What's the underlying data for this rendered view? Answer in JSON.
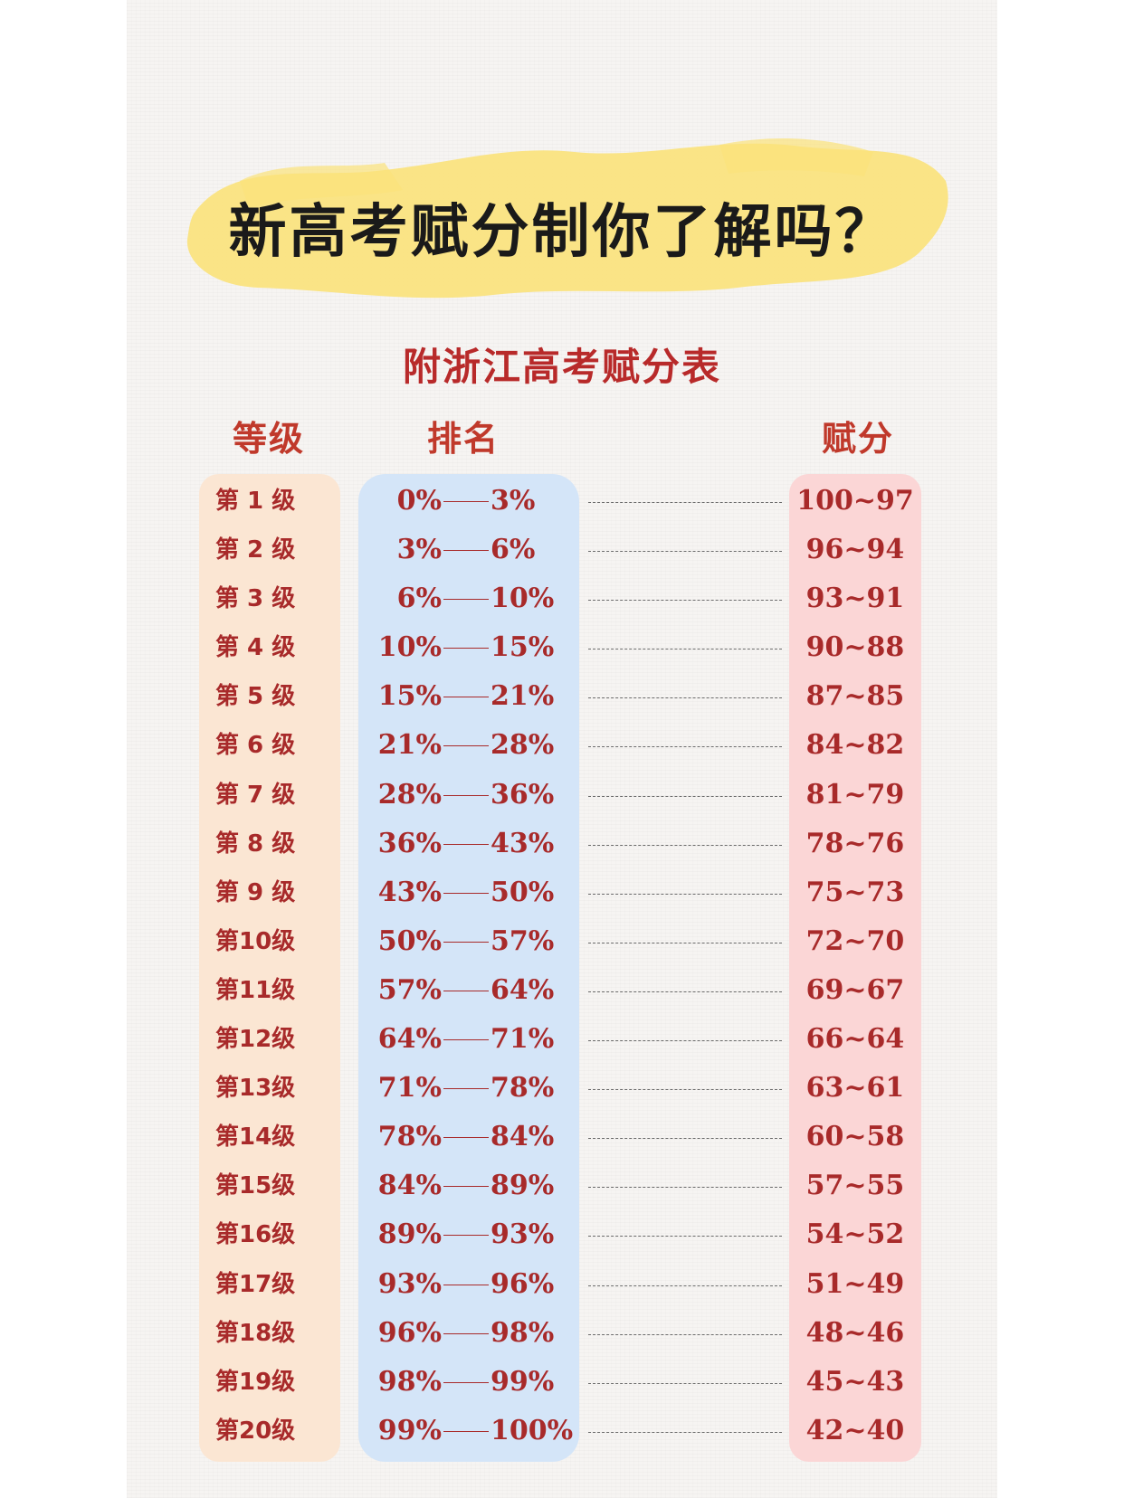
{
  "title": "新高考赋分制你了解吗？",
  "subtitle": "附浙江高考赋分表",
  "headers": {
    "grade": "等级",
    "rank": "排名",
    "score": "赋分"
  },
  "rows": [
    {
      "grade": "第 1 级",
      "from": "0%",
      "to": "3%",
      "score": "100~97"
    },
    {
      "grade": "第 2 级",
      "from": "3%",
      "to": "6%",
      "score": "96~94"
    },
    {
      "grade": "第 3 级",
      "from": "6%",
      "to": "10%",
      "score": "93~91"
    },
    {
      "grade": "第 4 级",
      "from": "10%",
      "to": "15%",
      "score": "90~88"
    },
    {
      "grade": "第 5 级",
      "from": "15%",
      "to": "21%",
      "score": "87~85"
    },
    {
      "grade": "第 6 级",
      "from": "21%",
      "to": "28%",
      "score": "84~82"
    },
    {
      "grade": "第 7 级",
      "from": "28%",
      "to": "36%",
      "score": "81~79"
    },
    {
      "grade": "第 8 级",
      "from": "36%",
      "to": "43%",
      "score": "78~76"
    },
    {
      "grade": "第 9 级",
      "from": "43%",
      "to": "50%",
      "score": "75~73"
    },
    {
      "grade": "第10级",
      "from": "50%",
      "to": "57%",
      "score": "72~70"
    },
    {
      "grade": "第11级",
      "from": "57%",
      "to": "64%",
      "score": "69~67"
    },
    {
      "grade": "第12级",
      "from": "64%",
      "to": "71%",
      "score": "66~64"
    },
    {
      "grade": "第13级",
      "from": "71%",
      "to": "78%",
      "score": "63~61"
    },
    {
      "grade": "第14级",
      "from": "78%",
      "to": "84%",
      "score": "60~58"
    },
    {
      "grade": "第15级",
      "from": "84%",
      "to": "89%",
      "score": "57~55"
    },
    {
      "grade": "第16级",
      "from": "89%",
      "to": "93%",
      "score": "54~52"
    },
    {
      "grade": "第17级",
      "from": "93%",
      "to": "96%",
      "score": "51~49"
    },
    {
      "grade": "第18级",
      "from": "96%",
      "to": "98%",
      "score": "48~46"
    },
    {
      "grade": "第19级",
      "from": "98%",
      "to": "99%",
      "score": "45~43"
    },
    {
      "grade": "第20级",
      "from": "99%",
      "to": "100%",
      "score": "42~40"
    }
  ],
  "colors": {
    "title": "#1a1a1a",
    "subtitle": "#b82a2a",
    "header": "#c0392b",
    "cell_text": "#a82a2a",
    "highlight": "#fbe27a",
    "grade_bg": "#fbe6d3",
    "rank_bg": "#d4e5f8",
    "score_bg": "#fbd6d6"
  }
}
